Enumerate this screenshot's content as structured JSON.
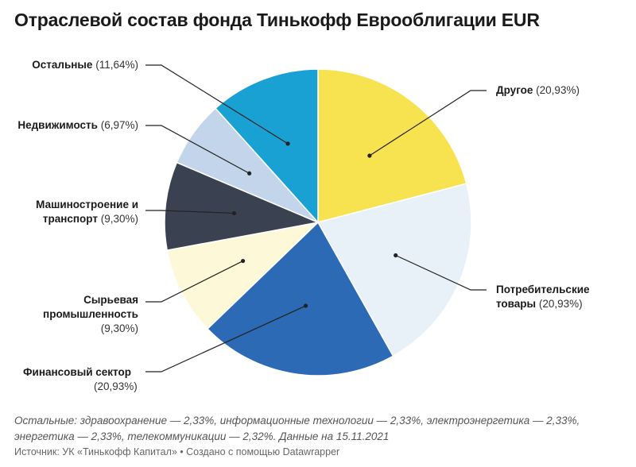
{
  "chart_data": {
    "type": "pie",
    "title": "Отраслевой состав фонда Тинькофф Еврооблигации EUR",
    "slices": [
      {
        "name": "Другое",
        "value": 20.93,
        "pct_label": "(20,93%)",
        "color": "#f7e34f"
      },
      {
        "name": "Потребительские товары",
        "name_lines": [
          "Потребительские",
          "товары"
        ],
        "value": 20.93,
        "pct_label": "(20,93%)",
        "color": "#e8f0f8"
      },
      {
        "name": "Финансовый сектор",
        "value": 20.93,
        "pct_label": "(20,93%)",
        "color": "#2d6ab6"
      },
      {
        "name": "Сырьевая промышленность",
        "name_lines": [
          "Сырьевая",
          "промышленность"
        ],
        "value": 9.3,
        "pct_label": "(9,30%)",
        "color": "#fdf8d8"
      },
      {
        "name": "Машиностроение и транспорт",
        "name_lines": [
          "Машиностроение и",
          "транспорт"
        ],
        "value": 9.3,
        "pct_label": "(9,30%)",
        "color": "#3a4252"
      },
      {
        "name": "Недвижимость",
        "value": 6.97,
        "pct_label": "(6,97%)",
        "color": "#c3d5ea"
      },
      {
        "name": "Остальные",
        "value": 11.64,
        "pct_label": "(11,64%)",
        "color": "#1aa1d4"
      }
    ],
    "note": "Остальные: здравоохранение — 2,33%, информационные технологии — 2,33%, электроэнергетика — 2,33%, энергетика — 2,33%, телекоммуникации — 2,32%. Данные на 15.11.2021",
    "source": "Источник: УК «Тинькофф Капитал» • Создано с помощью Datawrapper"
  }
}
